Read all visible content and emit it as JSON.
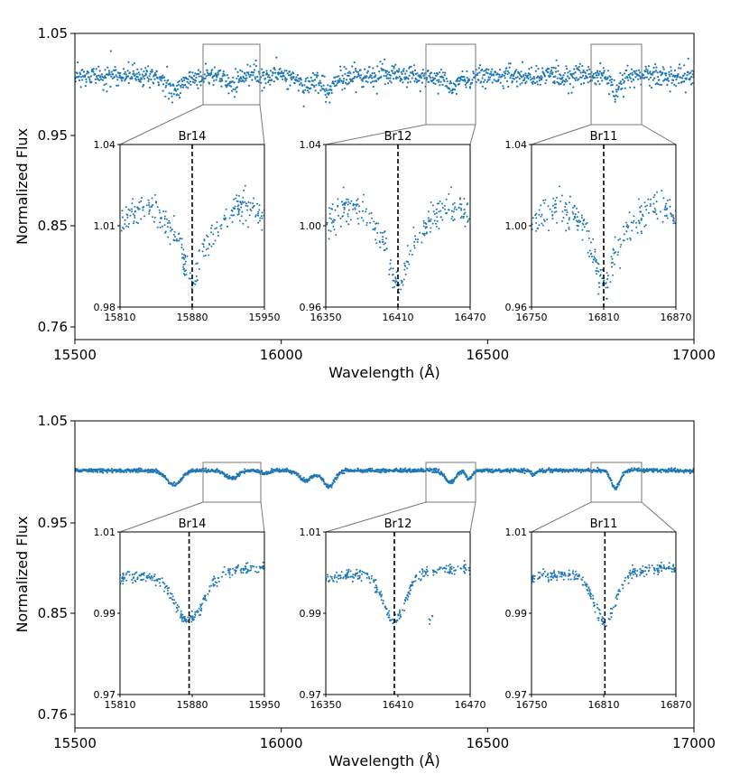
{
  "figure": {
    "xlabel": "Wavelength (Å)",
    "ylabel": "Normalized Flux"
  },
  "chart_data": [
    {
      "type": "scatter",
      "panel": "top",
      "xlabel": "Wavelength (Å)",
      "ylabel": "Normalized Flux",
      "xlim": [
        15500,
        17000
      ],
      "ylim": [
        0.75,
        1.05
      ],
      "xticks": [
        "15500",
        "16000",
        "16500",
        "17000"
      ],
      "yticks": [
        "1.05",
        "0.95",
        "0.85",
        "0.76"
      ],
      "yscale": "nonlinear",
      "color": "#1f77b4",
      "series": [
        {
          "name": "spectrum",
          "noise": "high"
        }
      ],
      "insets": [
        {
          "title": "Br14",
          "xlim": [
            15810,
            15950
          ],
          "ylim": [
            0.98,
            1.04
          ],
          "xticks": [
            "15810",
            "15880",
            "15950"
          ],
          "yticks": [
            "0.98",
            "1.01",
            "1.04"
          ],
          "line_center": 15880
        },
        {
          "title": "Br12",
          "xlim": [
            16350,
            16470
          ],
          "ylim": [
            0.96,
            1.04
          ],
          "xticks": [
            "16350",
            "16410",
            "16470"
          ],
          "yticks": [
            "0.96",
            "1.00",
            "1.04"
          ],
          "line_center": 16410
        },
        {
          "title": "Br11",
          "xlim": [
            16750,
            16870
          ],
          "ylim": [
            0.96,
            1.04
          ],
          "xticks": [
            "16750",
            "16810",
            "16870"
          ],
          "yticks": [
            "0.96",
            "1.00",
            "1.04"
          ],
          "line_center": 16810
        }
      ]
    },
    {
      "type": "scatter",
      "panel": "bottom",
      "xlabel": "Wavelength (Å)",
      "ylabel": "Normalized Flux",
      "xlim": [
        15500,
        17000
      ],
      "ylim": [
        0.75,
        1.05
      ],
      "xticks": [
        "15500",
        "16000",
        "16500",
        "17000"
      ],
      "yticks": [
        "1.05",
        "0.95",
        "0.85",
        "0.76"
      ],
      "yscale": "nonlinear",
      "color": "#1f77b4",
      "series": [
        {
          "name": "spectrum",
          "noise": "low"
        }
      ],
      "insets": [
        {
          "title": "Br14",
          "xlim": [
            15810,
            15950
          ],
          "ylim": [
            0.97,
            1.01
          ],
          "xticks": [
            "15810",
            "15880",
            "15950"
          ],
          "yticks": [
            "0.97",
            "0.99",
            "1.01"
          ],
          "line_center": 15877
        },
        {
          "title": "Br12",
          "xlim": [
            16350,
            16470
          ],
          "ylim": [
            0.97,
            1.01
          ],
          "xticks": [
            "16350",
            "16410",
            "16470"
          ],
          "yticks": [
            "0.97",
            "0.99",
            "1.01"
          ],
          "line_center": 16407
        },
        {
          "title": "Br11",
          "xlim": [
            16750,
            16870
          ],
          "ylim": [
            0.97,
            1.01
          ],
          "xticks": [
            "16750",
            "16810",
            "16870"
          ],
          "yticks": [
            "0.97",
            "0.99",
            "1.01"
          ],
          "line_center": 16811
        }
      ]
    }
  ]
}
